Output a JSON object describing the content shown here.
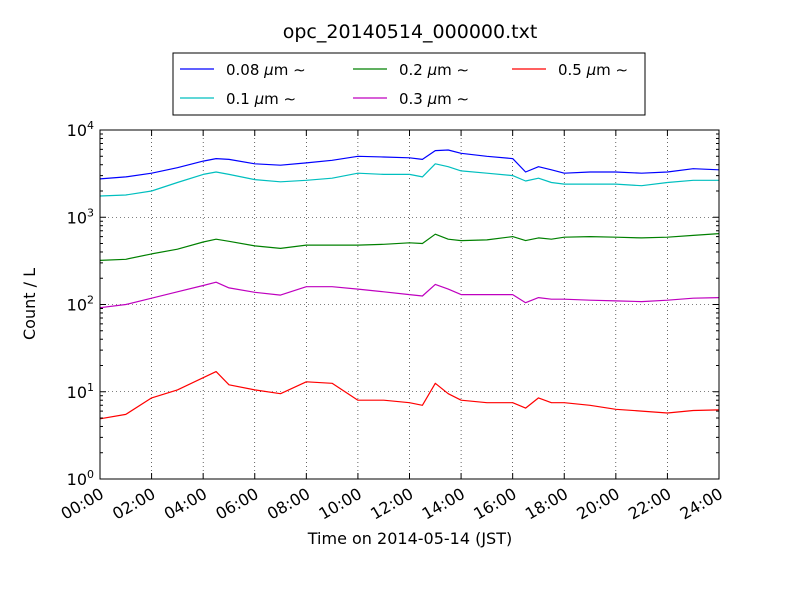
{
  "chart_data": {
    "type": "line",
    "title": "opc_20140514_000000.txt",
    "xlabel": "Time on 2014-05-14 (JST)",
    "ylabel": "Count / L",
    "x_ticks": [
      "00:00",
      "02:00",
      "04:00",
      "06:00",
      "08:00",
      "10:00",
      "12:00",
      "14:00",
      "16:00",
      "18:00",
      "20:00",
      "22:00",
      "24:00"
    ],
    "xlim_hours": [
      0,
      24
    ],
    "y_scale": "log",
    "ylim": [
      1,
      10000
    ],
    "y_ticks": [
      {
        "base": "10",
        "exp": "0"
      },
      {
        "base": "10",
        "exp": "1"
      },
      {
        "base": "10",
        "exp": "2"
      },
      {
        "base": "10",
        "exp": "3"
      },
      {
        "base": "10",
        "exp": "4"
      }
    ],
    "grid": true,
    "legend_position": "top, above plot",
    "x_hours": [
      0,
      1,
      2,
      3,
      4,
      4.5,
      5,
      6,
      7,
      8,
      9,
      10,
      11,
      12,
      12.5,
      13,
      13.5,
      14,
      15,
      16,
      16.5,
      17,
      17.5,
      18,
      19,
      20,
      21,
      22,
      23,
      24
    ],
    "series": [
      {
        "name": "0.08",
        "color": "#0000ff",
        "values": [
          2750,
          2900,
          3200,
          3700,
          4400,
          4700,
          4600,
          4100,
          3950,
          4200,
          4500,
          5000,
          4900,
          4800,
          4600,
          5800,
          5900,
          5400,
          5000,
          4700,
          3300,
          3800,
          3500,
          3200,
          3300,
          3300,
          3200,
          3300,
          3600,
          3500
        ]
      },
      {
        "name": "0.1",
        "color": "#00bfbf",
        "values": [
          1750,
          1800,
          2000,
          2500,
          3100,
          3300,
          3100,
          2700,
          2550,
          2650,
          2800,
          3200,
          3100,
          3100,
          2900,
          4100,
          3800,
          3400,
          3200,
          3000,
          2600,
          2800,
          2500,
          2400,
          2400,
          2400,
          2300,
          2500,
          2650,
          2650
        ]
      },
      {
        "name": "0.2",
        "color": "#008000",
        "values": [
          320,
          330,
          380,
          430,
          520,
          560,
          530,
          470,
          440,
          480,
          480,
          480,
          490,
          510,
          500,
          640,
          560,
          540,
          550,
          600,
          540,
          580,
          560,
          590,
          600,
          590,
          580,
          590,
          620,
          650
        ]
      },
      {
        "name": "0.3",
        "color": "#bf00bf",
        "values": [
          92,
          100,
          118,
          140,
          165,
          180,
          155,
          138,
          128,
          160,
          160,
          150,
          140,
          130,
          125,
          170,
          150,
          130,
          130,
          130,
          105,
          120,
          115,
          115,
          112,
          110,
          108,
          112,
          118,
          120
        ]
      },
      {
        "name": "0.5",
        "color": "#ff0000",
        "values": [
          4.9,
          5.5,
          8.5,
          10.5,
          14.5,
          17,
          12,
          10.5,
          9.5,
          13,
          12.5,
          8,
          8,
          7.5,
          7,
          12.5,
          9.5,
          8,
          7.5,
          7.5,
          6.5,
          8.5,
          7.5,
          7.5,
          7,
          6.3,
          6,
          5.7,
          6.1,
          6.2
        ]
      }
    ],
    "legend_entries": [
      {
        "value": "0.08",
        "unit": "μm",
        "suffix": "∼"
      },
      {
        "value": "0.1",
        "unit": "μm",
        "suffix": "∼"
      },
      {
        "value": "0.2",
        "unit": "μm",
        "suffix": "∼"
      },
      {
        "value": "0.3",
        "unit": "μm",
        "suffix": "∼"
      },
      {
        "value": "0.5",
        "unit": "μm",
        "suffix": "∼"
      }
    ]
  }
}
